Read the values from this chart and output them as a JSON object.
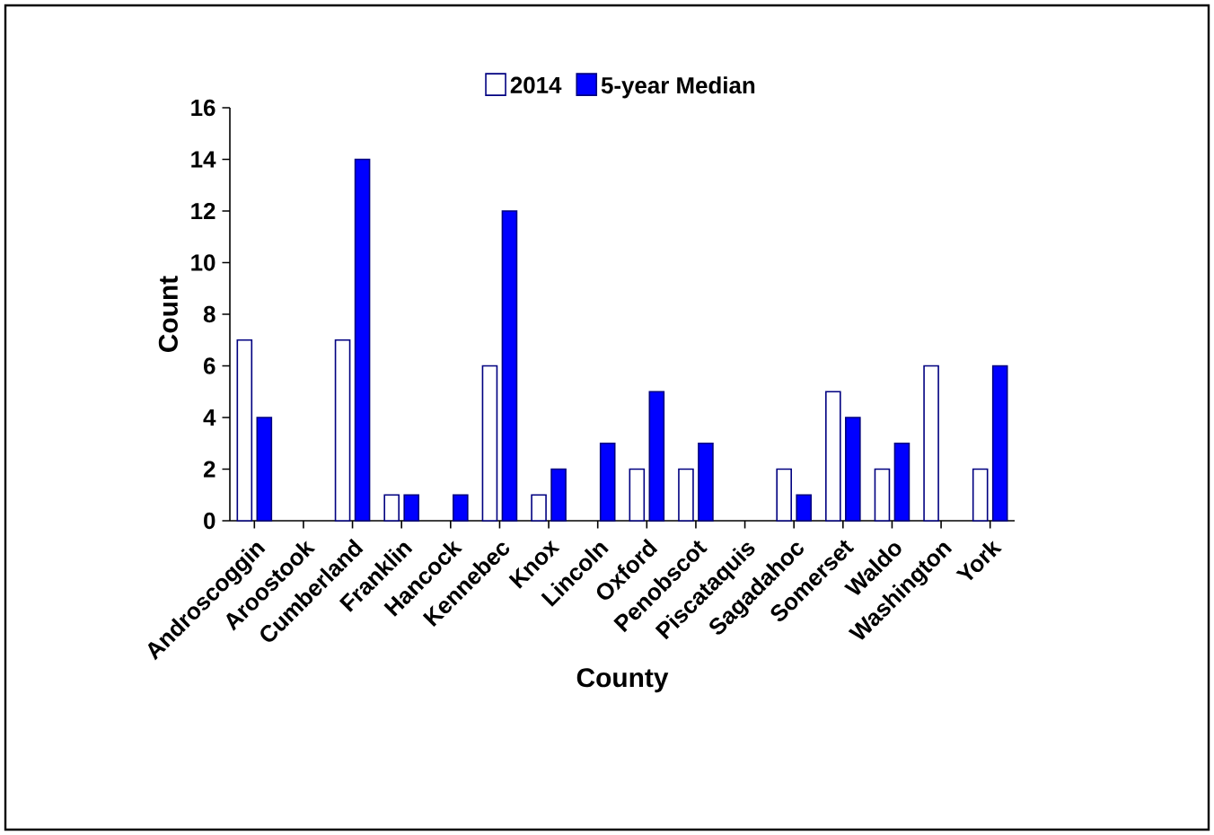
{
  "chart_data": {
    "type": "bar",
    "xlabel": "County",
    "ylabel": "Count",
    "categories": [
      "Androscoggin",
      "Aroostook",
      "Cumberland",
      "Franklin",
      "Hancock",
      "Kennebec",
      "Knox",
      "Lincoln",
      "Oxford",
      "Penobscot",
      "Piscataquis",
      "Sagadahoc",
      "Somerset",
      "Waldo",
      "Washington",
      "York"
    ],
    "series": [
      {
        "name": "2014",
        "color": "#ffffff",
        "values": [
          7,
          0,
          7,
          1,
          0,
          6,
          1,
          0,
          2,
          2,
          0,
          2,
          5,
          2,
          6,
          2
        ]
      },
      {
        "name": "5-year Median",
        "color": "#0000ff",
        "values": [
          4,
          0,
          14,
          1,
          1,
          12,
          2,
          3,
          5,
          3,
          0,
          1,
          4,
          3,
          0,
          6
        ]
      }
    ],
    "ylim": [
      0,
      16
    ],
    "yticks": [
      0,
      2,
      4,
      6,
      8,
      10,
      12,
      14,
      16
    ],
    "grid": false,
    "legend": "top"
  }
}
